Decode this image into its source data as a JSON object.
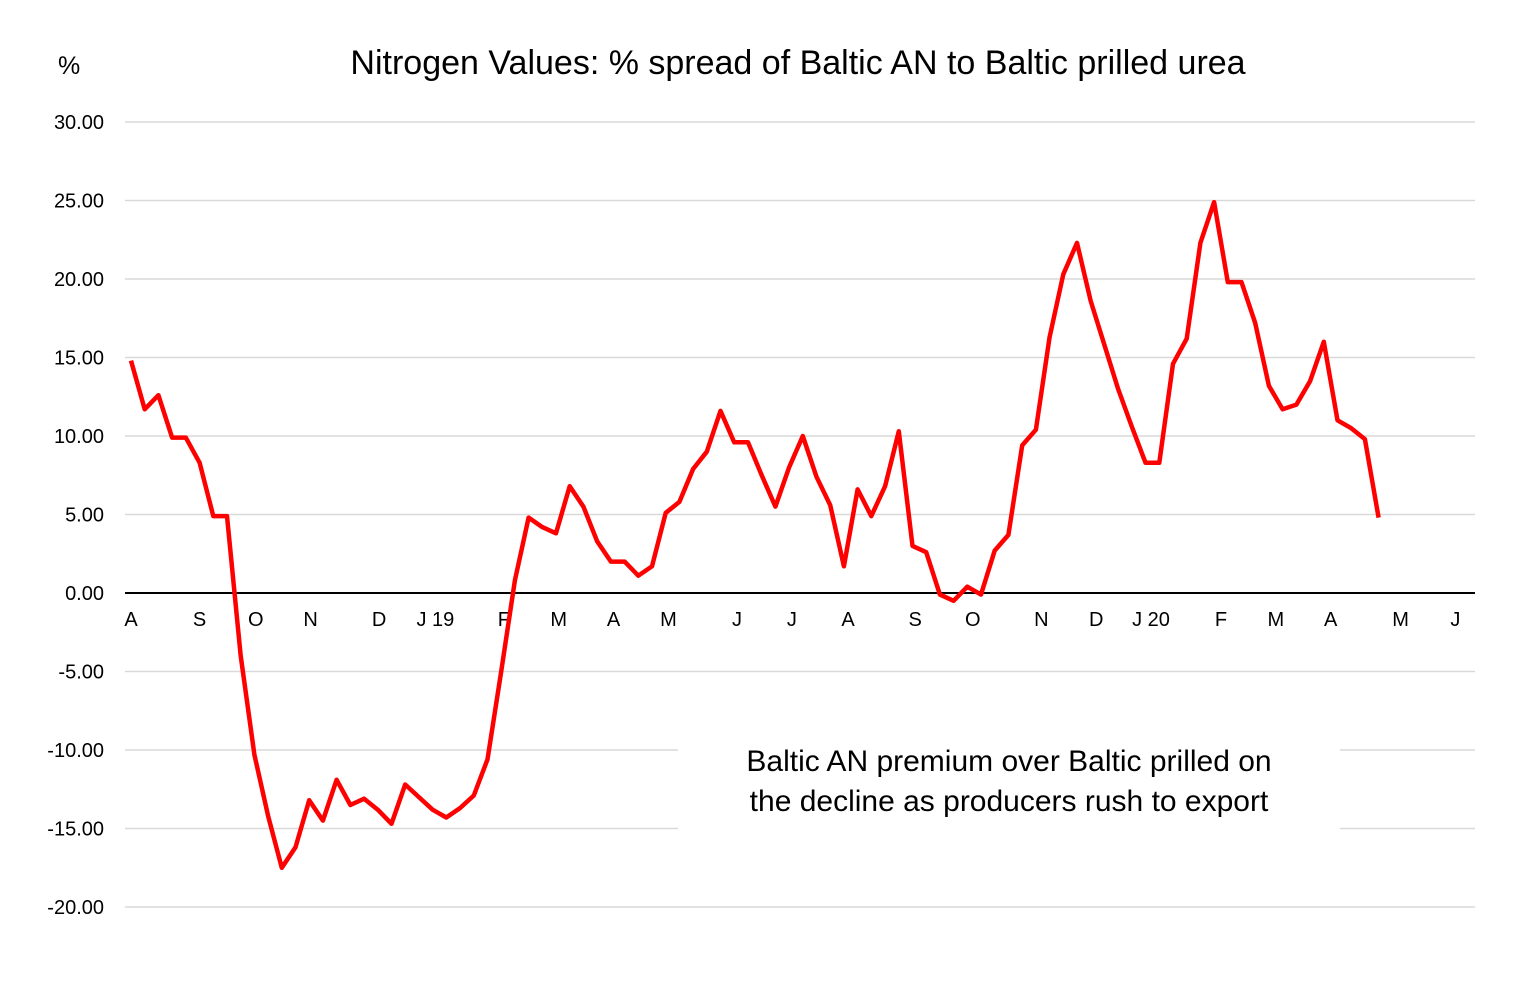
{
  "chart_data": {
    "type": "line",
    "title": "Nitrogen Values: % spread of Baltic AN to Baltic prilled urea",
    "ylabel": "%",
    "xlabel": "",
    "ylim": [
      -20,
      30
    ],
    "yticks": [
      "30.00",
      "25.00",
      "20.00",
      "15.00",
      "10.00",
      "5.00",
      "0.00",
      "-5.00",
      "-10.00",
      "-15.00",
      "-20.00"
    ],
    "ytick_values": [
      30,
      25,
      20,
      15,
      10,
      5,
      0,
      -5,
      -10,
      -15,
      -20
    ],
    "grid": true,
    "x_month_labels": [
      {
        "label": "A",
        "pos": 0
      },
      {
        "label": "S",
        "pos": 5
      },
      {
        "label": "O",
        "pos": 9.1
      },
      {
        "label": "N",
        "pos": 13.1
      },
      {
        "label": "D",
        "pos": 18.1
      },
      {
        "label": "J 19",
        "pos": 22.2
      },
      {
        "label": "F",
        "pos": 27.2
      },
      {
        "label": "M",
        "pos": 31.2
      },
      {
        "label": "A",
        "pos": 35.2
      },
      {
        "label": "M",
        "pos": 39.2
      },
      {
        "label": "J",
        "pos": 44.2
      },
      {
        "label": "J",
        "pos": 48.2
      },
      {
        "label": "A",
        "pos": 52.3
      },
      {
        "label": "S",
        "pos": 57.2
      },
      {
        "label": "O",
        "pos": 61.4
      },
      {
        "label": "N",
        "pos": 66.4
      },
      {
        "label": "D",
        "pos": 70.4
      },
      {
        "label": "J 20",
        "pos": 74.4
      },
      {
        "label": "F",
        "pos": 79.5
      },
      {
        "label": "M",
        "pos": 83.5
      },
      {
        "label": "A",
        "pos": 87.5
      },
      {
        "label": "M",
        "pos": 92.6
      },
      {
        "label": "J",
        "pos": 96.6
      }
    ],
    "x_range": [
      0,
      98.5
    ],
    "series": [
      {
        "name": "% spread Baltic AN to Baltic prilled urea",
        "color": "#ff0000",
        "values": [
          14.8,
          11.7,
          12.6,
          9.9,
          9.9,
          8.3,
          4.9,
          4.9,
          -4.0,
          -10.3,
          -14.2,
          -17.5,
          -16.2,
          -13.2,
          -14.5,
          -11.9,
          -13.5,
          -13.1,
          -13.8,
          -14.7,
          -12.2,
          -13.0,
          -13.8,
          -14.3,
          -13.7,
          -12.9,
          -10.6,
          -5.0,
          0.8,
          4.8,
          4.2,
          3.8,
          6.8,
          5.5,
          3.3,
          2.0,
          2.0,
          1.1,
          1.7,
          5.1,
          5.8,
          7.9,
          9.0,
          11.6,
          9.6,
          9.6,
          7.5,
          5.5,
          8.0,
          10.0,
          7.4,
          5.6,
          1.7,
          6.6,
          4.9,
          6.8,
          10.3,
          3.0,
          2.6,
          -0.1,
          -0.5,
          0.4,
          -0.1,
          2.7,
          3.7,
          9.4,
          10.4,
          16.3,
          20.3,
          22.3,
          18.6,
          15.8,
          13.0,
          10.6,
          8.3,
          8.3,
          14.6,
          16.2,
          22.3,
          24.9,
          19.8,
          19.8,
          17.2,
          13.2,
          11.7,
          12.0,
          13.5,
          16.0,
          11.0,
          10.5,
          9.8,
          4.8
        ]
      }
    ],
    "annotation": [
      "Baltic AN premium over Baltic prilled on",
      "the decline as producers rush to export"
    ],
    "legend": "none"
  }
}
